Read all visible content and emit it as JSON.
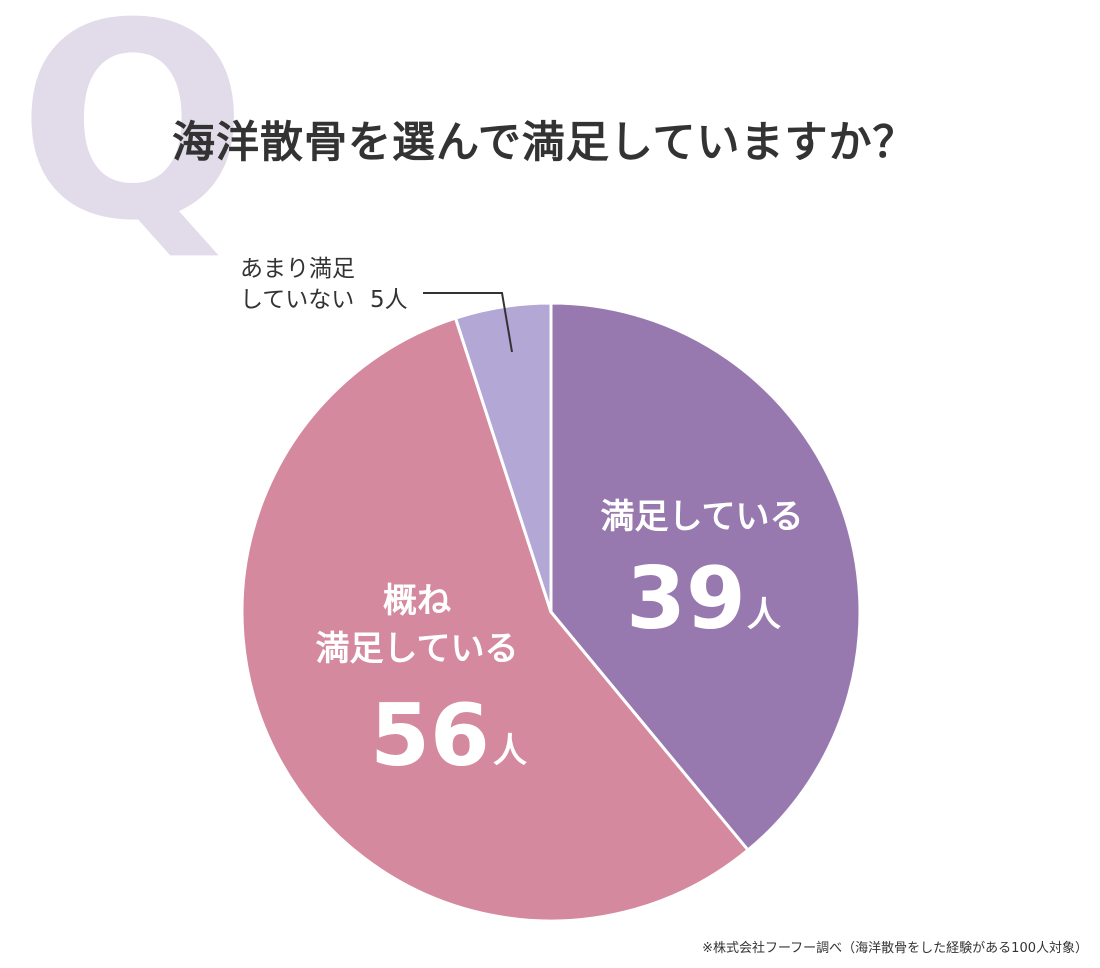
{
  "question_mark": "Q",
  "title": "海洋散骨を選んで満足していますか？",
  "footnote": "※株式会社フーフー調べ（海洋散骨をした経験がある100人対象）",
  "chart_data": {
    "type": "pie",
    "title": "海洋散骨を選んで満足していますか？",
    "unit": "人",
    "slices": [
      {
        "label": "満足している",
        "value": 39,
        "color": "#9779b0"
      },
      {
        "label": "概ね満足している",
        "value": 56,
        "color": "#d4899e"
      },
      {
        "label": "あまり満足していない",
        "value": 5,
        "color": "#b3a7d6"
      }
    ]
  },
  "labels": {
    "satisfied_line1": "満足している",
    "satisfied_value": "39",
    "mostly_line1": "概ね",
    "mostly_line2": "満足している",
    "mostly_value": "56",
    "unit": "人",
    "not_line1": "あまり満足",
    "not_line2": "していない",
    "not_value": "5人"
  }
}
